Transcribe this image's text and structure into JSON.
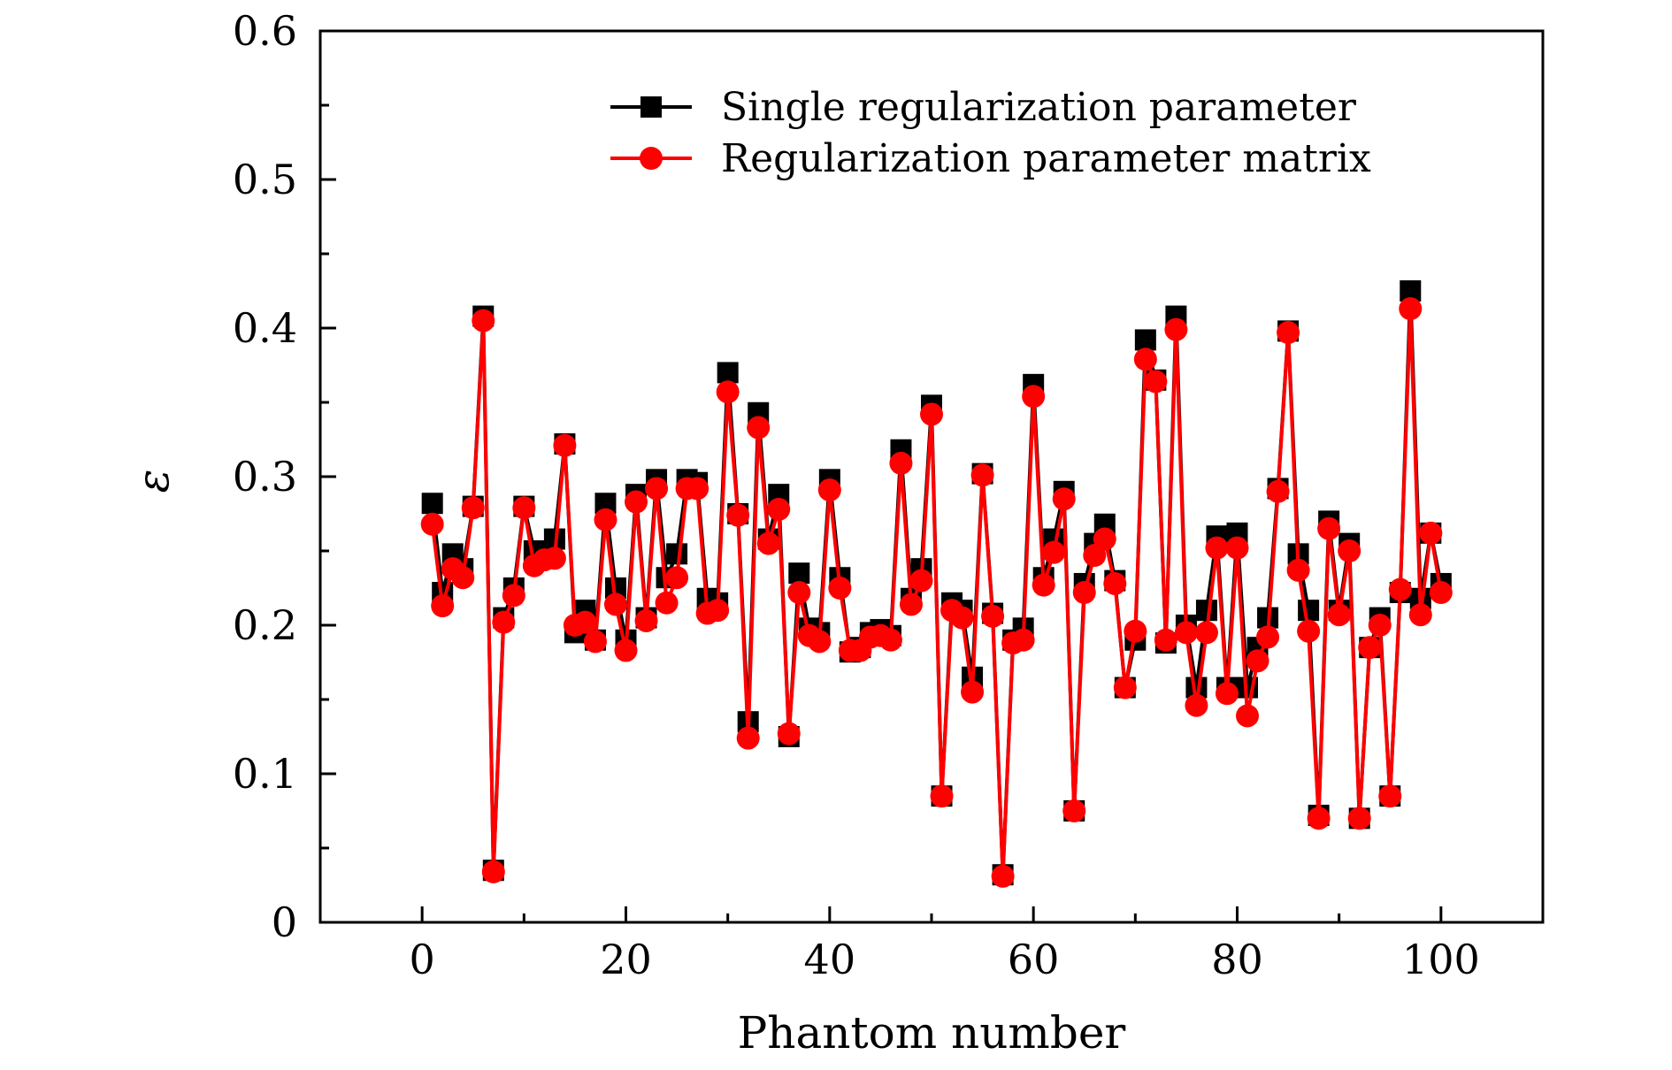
{
  "chart_data": {
    "type": "line",
    "title": "",
    "xlabel": "Phantom number",
    "ylabel": "ε",
    "xlim": [
      -10,
      110
    ],
    "ylim": [
      0,
      0.6
    ],
    "x_ticks": [
      0,
      20,
      40,
      60,
      80,
      100
    ],
    "y_ticks": [
      0,
      0.1,
      0.2,
      0.3,
      0.4,
      0.5,
      0.6
    ],
    "x_tick_labels": [
      "0",
      "20",
      "40",
      "60",
      "80",
      "100"
    ],
    "y_tick_labels": [
      "0",
      "0.1",
      "0.2",
      "0.3",
      "0.4",
      "0.5",
      "0.6"
    ],
    "grid": false,
    "legend_position": "top-right",
    "x": [
      1,
      2,
      3,
      4,
      5,
      6,
      7,
      8,
      9,
      10,
      11,
      12,
      13,
      14,
      15,
      16,
      17,
      18,
      19,
      20,
      21,
      22,
      23,
      24,
      25,
      26,
      27,
      28,
      29,
      30,
      31,
      32,
      33,
      34,
      35,
      36,
      37,
      38,
      39,
      40,
      41,
      42,
      43,
      44,
      45,
      46,
      47,
      48,
      49,
      50,
      51,
      52,
      53,
      54,
      55,
      56,
      57,
      58,
      59,
      60,
      61,
      62,
      63,
      64,
      65,
      66,
      67,
      68,
      69,
      70,
      71,
      72,
      73,
      74,
      75,
      76,
      77,
      78,
      79,
      80,
      81,
      82,
      83,
      84,
      85,
      86,
      87,
      88,
      89,
      90,
      91,
      92,
      93,
      94,
      95,
      96,
      97,
      98,
      99,
      100
    ],
    "series": [
      {
        "name": "Single regularization parameter",
        "color": "#000000",
        "marker": "square",
        "values": [
          0.282,
          0.222,
          0.248,
          0.238,
          0.28,
          0.408,
          0.035,
          0.205,
          0.225,
          0.28,
          0.25,
          0.245,
          0.258,
          0.322,
          0.195,
          0.21,
          0.19,
          0.282,
          0.225,
          0.19,
          0.288,
          0.205,
          0.298,
          0.232,
          0.248,
          0.298,
          0.296,
          0.218,
          0.215,
          0.37,
          0.275,
          0.135,
          0.343,
          0.258,
          0.288,
          0.125,
          0.235,
          0.198,
          0.195,
          0.298,
          0.232,
          0.182,
          0.185,
          0.195,
          0.197,
          0.193,
          0.318,
          0.218,
          0.238,
          0.348,
          0.085,
          0.215,
          0.21,
          0.165,
          0.302,
          0.208,
          0.032,
          0.19,
          0.198,
          0.362,
          0.232,
          0.258,
          0.29,
          0.075,
          0.228,
          0.255,
          0.268,
          0.23,
          0.158,
          0.19,
          0.392,
          0.365,
          0.188,
          0.408,
          0.2,
          0.158,
          0.21,
          0.26,
          0.158,
          0.262,
          0.158,
          0.185,
          0.205,
          0.292,
          0.398,
          0.248,
          0.21,
          0.072,
          0.27,
          0.21,
          0.255,
          0.07,
          0.185,
          0.205,
          0.085,
          0.222,
          0.425,
          0.218,
          0.262,
          0.228
        ]
      },
      {
        "name": "Regularization parameter matrix",
        "color": "#ff0000",
        "marker": "circle",
        "values": [
          0.268,
          0.213,
          0.238,
          0.232,
          0.279,
          0.405,
          0.034,
          0.202,
          0.22,
          0.279,
          0.24,
          0.244,
          0.245,
          0.321,
          0.2,
          0.202,
          0.189,
          0.271,
          0.214,
          0.183,
          0.283,
          0.203,
          0.292,
          0.215,
          0.232,
          0.292,
          0.292,
          0.208,
          0.21,
          0.357,
          0.274,
          0.124,
          0.333,
          0.255,
          0.278,
          0.127,
          0.222,
          0.193,
          0.189,
          0.291,
          0.225,
          0.183,
          0.183,
          0.192,
          0.193,
          0.19,
          0.309,
          0.214,
          0.23,
          0.342,
          0.085,
          0.21,
          0.205,
          0.155,
          0.301,
          0.206,
          0.031,
          0.188,
          0.19,
          0.354,
          0.227,
          0.249,
          0.285,
          0.075,
          0.222,
          0.247,
          0.258,
          0.228,
          0.158,
          0.196,
          0.379,
          0.364,
          0.19,
          0.399,
          0.195,
          0.146,
          0.195,
          0.252,
          0.154,
          0.252,
          0.139,
          0.176,
          0.192,
          0.29,
          0.397,
          0.237,
          0.196,
          0.07,
          0.265,
          0.207,
          0.25,
          0.07,
          0.185,
          0.2,
          0.085,
          0.224,
          0.413,
          0.207,
          0.262,
          0.222
        ]
      }
    ]
  }
}
